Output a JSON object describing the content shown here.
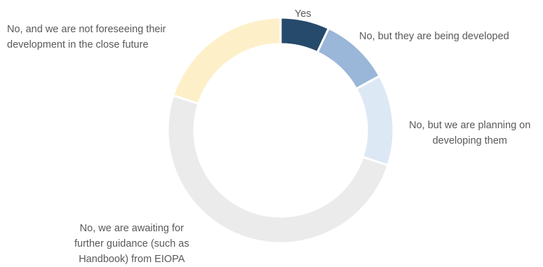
{
  "chart_data": {
    "type": "pie",
    "variant": "donut",
    "slices": [
      {
        "label": [
          "Yes"
        ],
        "value": 7,
        "color": "#264a6b"
      },
      {
        "label": [
          "No, but they are being developed"
        ],
        "value": 10,
        "color": "#9ab6d8"
      },
      {
        "label": [
          "No, but we are planning on",
          "developing them"
        ],
        "value": 13,
        "color": "#dde8f5"
      },
      {
        "label": [
          "No, we are awaiting for",
          "further guidance (such as",
          "Handbook) from EIOPA"
        ],
        "value": 50,
        "color": "#ebebeb"
      },
      {
        "label": [
          "No, and we are not foreseeing their",
          "development in the close future"
        ],
        "value": 20,
        "color": "#fdf0c9"
      }
    ],
    "legend": "none"
  }
}
